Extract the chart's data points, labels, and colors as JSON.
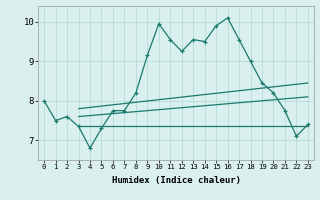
{
  "x": [
    0,
    1,
    2,
    3,
    4,
    5,
    6,
    7,
    8,
    9,
    10,
    11,
    12,
    13,
    14,
    15,
    16,
    17,
    18,
    19,
    20,
    21,
    22,
    23
  ],
  "y_main": [
    8.0,
    7.5,
    7.6,
    7.35,
    6.8,
    7.3,
    7.75,
    7.75,
    8.2,
    9.15,
    9.95,
    9.55,
    9.25,
    9.55,
    9.5,
    9.9,
    10.1,
    9.55,
    9.0,
    8.45,
    8.2,
    7.75,
    7.1,
    7.4
  ],
  "trend_x": [
    3,
    23
  ],
  "trend1_y": [
    7.35,
    7.35
  ],
  "trend2_y": [
    7.6,
    8.1
  ],
  "trend3_y": [
    7.8,
    8.45
  ],
  "xlabel": "Humidex (Indice chaleur)",
  "ylim": [
    6.5,
    10.4
  ],
  "xlim": [
    -0.5,
    23.5
  ],
  "yticks": [
    7,
    8,
    9,
    10
  ],
  "xticks": [
    0,
    1,
    2,
    3,
    4,
    5,
    6,
    7,
    8,
    9,
    10,
    11,
    12,
    13,
    14,
    15,
    16,
    17,
    18,
    19,
    20,
    21,
    22,
    23
  ],
  "line_color": "#1a7a6e",
  "bg_color": "#daf0ee",
  "grid_color": "#aed8d4"
}
